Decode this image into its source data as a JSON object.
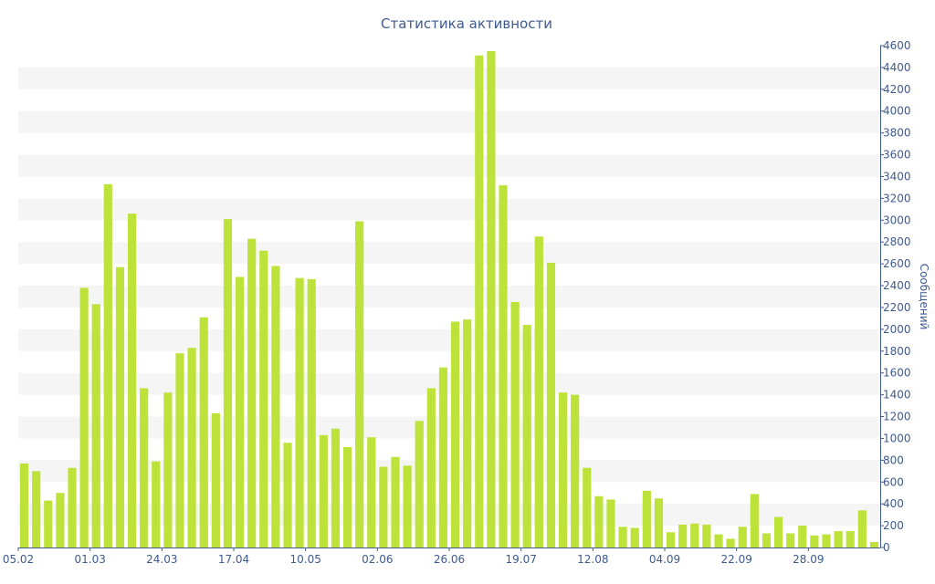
{
  "chart_data": {
    "type": "bar",
    "title": "Статистика активности",
    "ylabel": "Сообщений",
    "xlabel": "",
    "ylim": [
      0,
      4600
    ],
    "y_ticks": [
      0,
      200,
      400,
      600,
      800,
      1000,
      1200,
      1400,
      1600,
      1800,
      2000,
      2200,
      2400,
      2600,
      2800,
      3000,
      3200,
      3400,
      3600,
      3800,
      4000,
      4200,
      4400,
      4600
    ],
    "x_tick_labels": [
      {
        "index": 0,
        "label": "05.02"
      },
      {
        "index": 6,
        "label": "01.03"
      },
      {
        "index": 12,
        "label": "24.03"
      },
      {
        "index": 18,
        "label": "17.04"
      },
      {
        "index": 24,
        "label": "10.05"
      },
      {
        "index": 30,
        "label": "02.06"
      },
      {
        "index": 36,
        "label": "26.06"
      },
      {
        "index": 42,
        "label": "19.07"
      },
      {
        "index": 48,
        "label": "12.08"
      },
      {
        "index": 54,
        "label": "04.09"
      },
      {
        "index": 60,
        "label": "22.09"
      },
      {
        "index": 66,
        "label": "28.09"
      }
    ],
    "grid": "alternating horizontal bands",
    "y_axis_position": "right",
    "bar_color": "#bde23a",
    "values": [
      770,
      700,
      430,
      500,
      730,
      2380,
      2230,
      3330,
      2570,
      3060,
      1460,
      790,
      1420,
      1780,
      1830,
      2110,
      1230,
      3010,
      2480,
      2830,
      2720,
      2580,
      960,
      2470,
      2460,
      1030,
      1090,
      920,
      2990,
      1010,
      740,
      830,
      750,
      1160,
      1460,
      1650,
      2070,
      2090,
      4510,
      4550,
      3320,
      2250,
      2040,
      2850,
      2610,
      1420,
      1400,
      730,
      470,
      440,
      190,
      180,
      520,
      450,
      140,
      210,
      220,
      210,
      120,
      80,
      190,
      490,
      130,
      280,
      130,
      200,
      110,
      120,
      150,
      150,
      340,
      50
    ]
  }
}
